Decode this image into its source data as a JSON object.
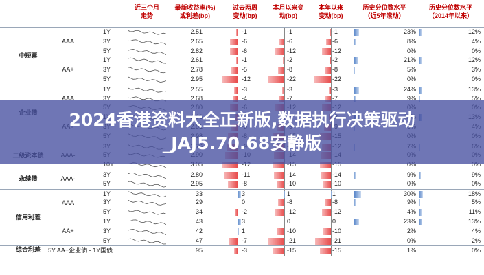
{
  "headers": {
    "spark": "近三个月\n走势",
    "yield": "最新收益率(%)\n或利差(bp)",
    "w2": "过去两周\n变动(bp)",
    "mtd": "本月以来变\n动(bp)",
    "ytd": "本年以来\n变动(bp)",
    "p5y": "历史分位数水平\n（近5年滚动）",
    "p2014": "历史分位数水平\n（2014年以来）"
  },
  "overlay": {
    "line1": "2024香港资料大全正新版,数据执行决策驱动",
    "line2": "_JAJ5.70.68安静版"
  },
  "groups": [
    {
      "label": "中短票",
      "start": 0,
      "count": 6
    },
    {
      "label": "企业债",
      "start": 6,
      "count": 6
    },
    {
      "label": "二级资本债",
      "start": 12,
      "count": 3
    },
    {
      "label": "永续债",
      "start": 15,
      "count": 2
    },
    {
      "label": "信用利差",
      "start": 17,
      "count": 6
    },
    {
      "label": "综合利差",
      "start": 23,
      "count": 1
    }
  ],
  "subgroups": [
    {
      "label": "AAA",
      "start": 0,
      "count": 3
    },
    {
      "label": "AA+",
      "start": 3,
      "count": 3
    },
    {
      "label": "AAA",
      "start": 6,
      "count": 3
    },
    {
      "label": "AA+",
      "start": 9,
      "count": 3
    },
    {
      "label": "AAA-",
      "start": 12,
      "count": 3
    },
    {
      "label": "AAA-",
      "start": 15,
      "count": 2
    },
    {
      "label": "AAA",
      "start": 17,
      "count": 3
    },
    {
      "label": "AA+",
      "start": 20,
      "count": 3
    }
  ],
  "rows": [
    {
      "tenor": "1Y",
      "value": "2.51",
      "w2": "-1",
      "mtd": "-1",
      "ytd": "-1",
      "p5y": "23%",
      "p2014": "12%"
    },
    {
      "tenor": "3Y",
      "value": "2.65",
      "w2": "-6",
      "mtd": "-6",
      "ytd": "-6",
      "p5y": "8%",
      "p2014": "4%"
    },
    {
      "tenor": "5Y",
      "value": "2.82",
      "w2": "-6",
      "mtd": "-12",
      "ytd": "-12",
      "p5y": "0%",
      "p2014": "0%"
    },
    {
      "tenor": "1Y",
      "value": "2.61",
      "w2": "-1",
      "mtd": "-2",
      "ytd": "-2",
      "p5y": "21%",
      "p2014": "12%"
    },
    {
      "tenor": "3Y",
      "value": "2.78",
      "w2": "-5",
      "mtd": "-8",
      "ytd": "-8",
      "p5y": "5%",
      "p2014": "3%"
    },
    {
      "tenor": "5Y",
      "value": "2.95",
      "w2": "-12",
      "mtd": "-22",
      "ytd": "-22",
      "p5y": "0%",
      "p2014": "0%"
    },
    {
      "tenor": "1Y",
      "value": "2.55",
      "w2": "-3",
      "mtd": "-3",
      "ytd": "-3",
      "p5y": "24%",
      "p2014": "13%"
    },
    {
      "tenor": "3Y",
      "value": "2.68",
      "w2": "-4",
      "mtd": "-7",
      "ytd": "-7",
      "p5y": "9%",
      "p2014": "5%"
    },
    {
      "tenor": "5Y",
      "value": "2.80",
      "w2": "-6",
      "mtd": "-12",
      "ytd": "-12",
      "p5y": "0%",
      "p2014": "0%"
    },
    {
      "tenor": "1Y",
      "value": "2.66",
      "w2": "-2",
      "mtd": "-3",
      "ytd": "-3",
      "p5y": "22%",
      "p2014": "13%"
    },
    {
      "tenor": "3Y",
      "value": "2.81",
      "w2": "-5",
      "mtd": "-9",
      "ytd": "-9",
      "p5y": "6%",
      "p2014": "4%"
    },
    {
      "tenor": "5Y",
      "value": "2.98",
      "w2": "-8",
      "mtd": "-15",
      "ytd": "-15",
      "p5y": "0%",
      "p2014": "0%"
    },
    {
      "tenor": "3Y",
      "value": "2.76",
      "w2": "-9",
      "mtd": "-12",
      "ytd": "-12",
      "p5y": "7%",
      "p2014": "6%"
    },
    {
      "tenor": "5Y",
      "value": "2.90",
      "w2": "-10",
      "mtd": "-14",
      "ytd": "-14",
      "p5y": "0%",
      "p2014": "0%"
    },
    {
      "tenor": "10Y",
      "value": "3.05",
      "w2": "-12",
      "mtd": "-15",
      "ytd": "-15",
      "p5y": "0%",
      "p2014": "0%"
    },
    {
      "tenor": "3Y",
      "value": "2.80",
      "w2": "-11",
      "mtd": "-14",
      "ytd": "-14",
      "p5y": "9%",
      "p2014": "9%"
    },
    {
      "tenor": "5Y",
      "value": "2.95",
      "w2": "-8",
      "mtd": "-10",
      "ytd": "-10",
      "p5y": "0%",
      "p2014": "0%"
    },
    {
      "tenor": "1Y",
      "value": "33",
      "w2": "3",
      "mtd": "1",
      "ytd": "1",
      "p5y": "30%",
      "p2014": "18%"
    },
    {
      "tenor": "3Y",
      "value": "29",
      "w2": "0",
      "mtd": "-8",
      "ytd": "-8",
      "p5y": "9%",
      "p2014": "5%"
    },
    {
      "tenor": "5Y",
      "value": "34",
      "w2": "-2",
      "mtd": "-12",
      "ytd": "-12",
      "p5y": "4%",
      "p2014": "11%"
    },
    {
      "tenor": "1Y",
      "value": "43",
      "w2": "3",
      "mtd": "0",
      "ytd": "0",
      "p5y": "23%",
      "p2014": "13%"
    },
    {
      "tenor": "3Y",
      "value": "42",
      "w2": "1",
      "mtd": "-10",
      "ytd": "-10",
      "p5y": "2%",
      "p2014": "4%"
    },
    {
      "tenor": "5Y",
      "value": "47",
      "w2": "-7",
      "mtd": "-21",
      "ytd": "-21",
      "p5y": "0%",
      "p2014": "2%"
    },
    {
      "tenor": "5Y AA+企业债 - 1Y国债",
      "value": "95",
      "w2": "-3",
      "mtd": "-15",
      "ytd": "-15",
      "p5y": "1%",
      "p2014": "0%"
    }
  ]
}
